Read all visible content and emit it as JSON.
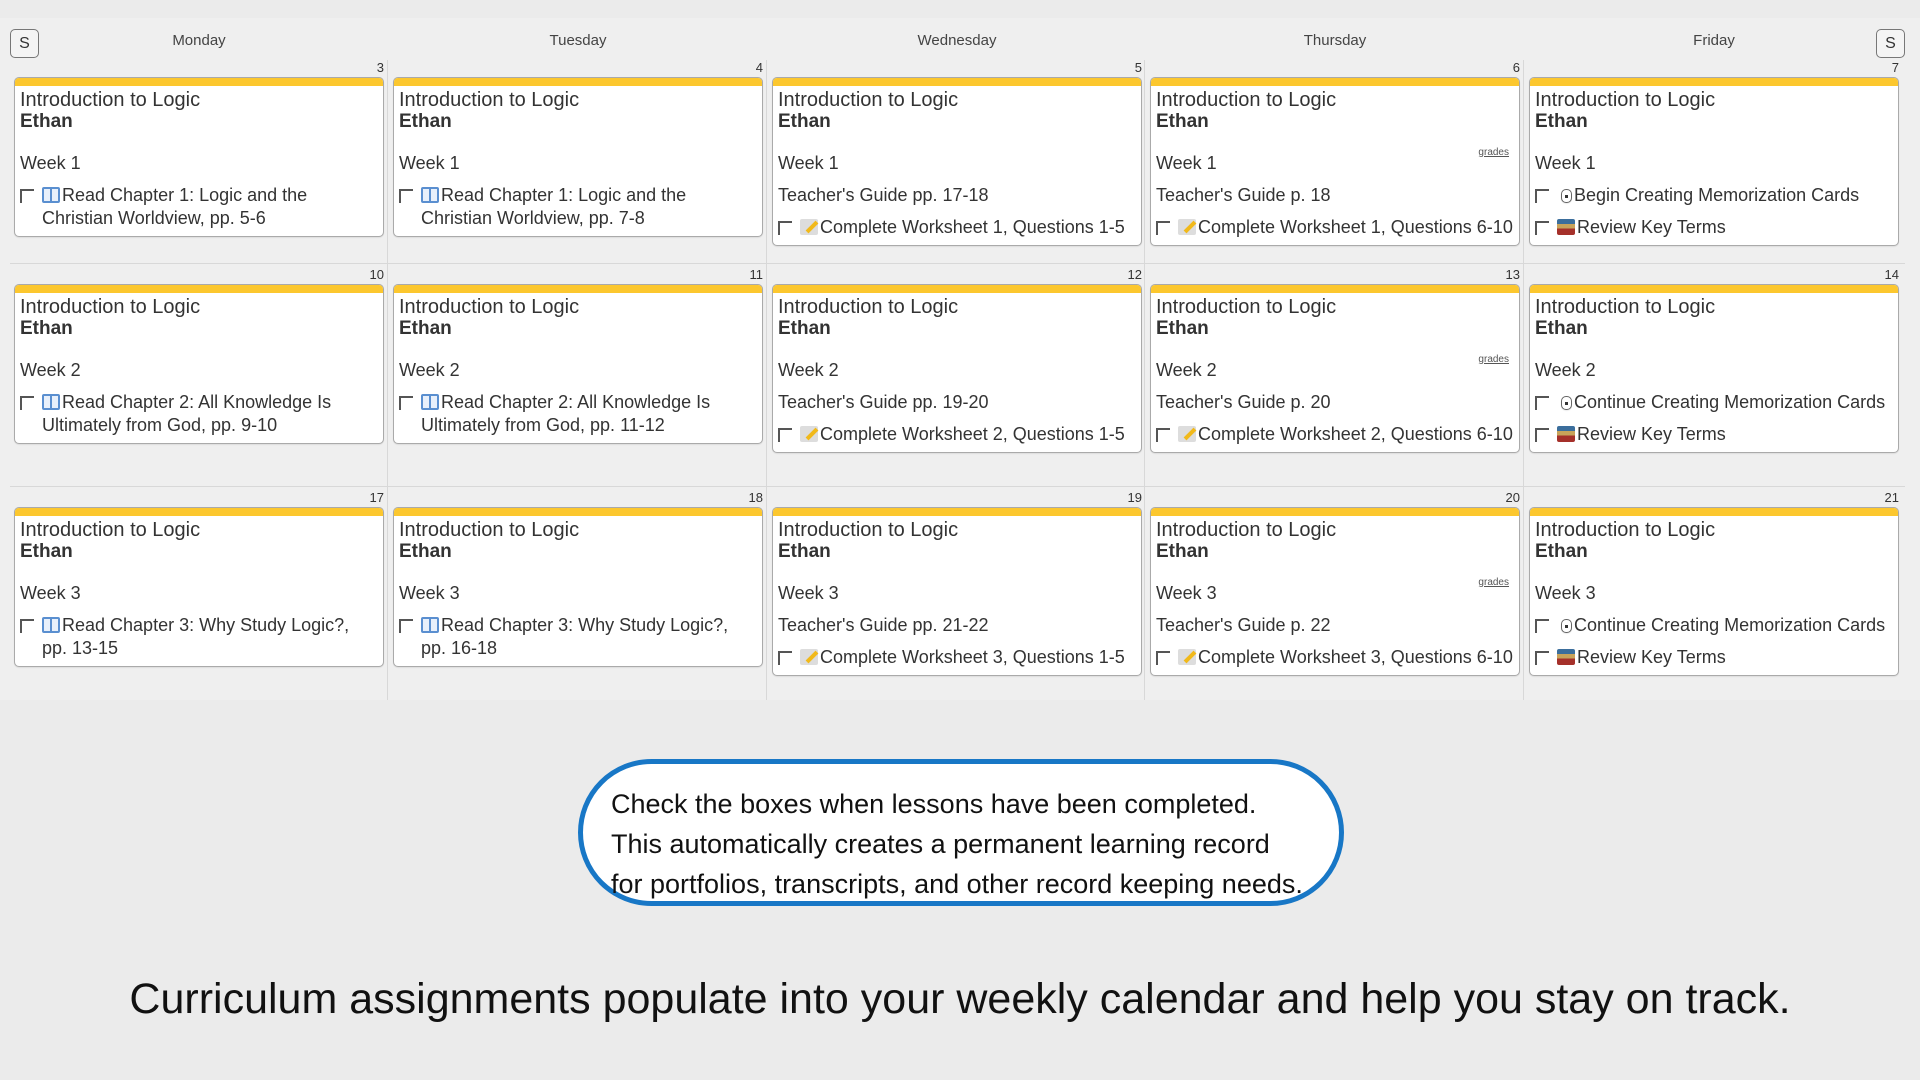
{
  "header": {
    "prev_label": "S",
    "next_label": "S",
    "days": [
      "Monday",
      "Tuesday",
      "Wednesday",
      "Thursday",
      "Friday"
    ]
  },
  "colors": {
    "card_accent": "#fcc72e",
    "bubble_border": "#1877c6"
  },
  "weeks": [
    {
      "days": [
        {
          "date": "3",
          "course": "Introduction to Logic",
          "student": "Ethan",
          "week": "Week 1",
          "tasks": [
            {
              "icon": "book-icon",
              "text": "Read Chapter 1: Logic and the Christian Worldview, pp. 5-6"
            }
          ]
        },
        {
          "date": "4",
          "course": "Introduction to Logic",
          "student": "Ethan",
          "week": "Week 1",
          "tasks": [
            {
              "icon": "book-icon",
              "text": "Read Chapter 1: Logic and the Christian Worldview, pp. 7-8"
            }
          ]
        },
        {
          "date": "5",
          "course": "Introduction to Logic",
          "student": "Ethan",
          "week": "Week 1",
          "guide": "Teacher's Guide pp. 17-18",
          "tasks": [
            {
              "icon": "pencil-icon",
              "text": "Complete Worksheet 1, Questions 1-5"
            }
          ]
        },
        {
          "date": "6",
          "course": "Introduction to Logic",
          "student": "Ethan",
          "grades": "grades",
          "week": "Week 1",
          "guide": "Teacher's Guide p. 18",
          "tasks": [
            {
              "icon": "pencil-icon",
              "text": "Complete Worksheet 1, Questions 6-10"
            }
          ]
        },
        {
          "date": "7",
          "course": "Introduction to Logic",
          "student": "Ethan",
          "week": "Week 1",
          "tasks": [
            {
              "icon": "card-icon",
              "text": "Begin Creating Memorization Cards"
            },
            {
              "icon": "books-icon",
              "text": "Review Key Terms"
            }
          ]
        }
      ]
    },
    {
      "days": [
        {
          "date": "10",
          "course": "Introduction to Logic",
          "student": "Ethan",
          "week": "Week 2",
          "tasks": [
            {
              "icon": "book-icon",
              "text": "Read Chapter 2: All Knowledge Is Ultimately from God, pp. 9-10"
            }
          ]
        },
        {
          "date": "11",
          "course": "Introduction to Logic",
          "student": "Ethan",
          "week": "Week 2",
          "tasks": [
            {
              "icon": "book-icon",
              "text": "Read Chapter 2: All Knowledge Is Ultimately from God, pp. 11-12"
            }
          ]
        },
        {
          "date": "12",
          "course": "Introduction to Logic",
          "student": "Ethan",
          "week": "Week 2",
          "guide": "Teacher's Guide pp. 19-20",
          "tasks": [
            {
              "icon": "pencil-icon",
              "text": "Complete Worksheet 2, Questions 1-5"
            }
          ]
        },
        {
          "date": "13",
          "course": "Introduction to Logic",
          "student": "Ethan",
          "grades": "grades",
          "week": "Week 2",
          "guide": "Teacher's Guide p. 20",
          "tasks": [
            {
              "icon": "pencil-icon",
              "text": "Complete Worksheet 2, Questions 6-10"
            }
          ]
        },
        {
          "date": "14",
          "course": "Introduction to Logic",
          "student": "Ethan",
          "week": "Week 2",
          "tasks": [
            {
              "icon": "card-icon",
              "text": "Continue Creating Memorization Cards"
            },
            {
              "icon": "books-icon",
              "text": "Review Key Terms"
            }
          ]
        }
      ]
    },
    {
      "days": [
        {
          "date": "17",
          "course": "Introduction to Logic",
          "student": "Ethan",
          "week": "Week 3",
          "tasks": [
            {
              "icon": "book-icon",
              "text": "Read Chapter 3: Why Study Logic?, pp. 13-15"
            }
          ]
        },
        {
          "date": "18",
          "course": "Introduction to Logic",
          "student": "Ethan",
          "week": "Week 3",
          "tasks": [
            {
              "icon": "book-icon",
              "text": "Read Chapter 3: Why Study Logic?, pp. 16-18"
            }
          ]
        },
        {
          "date": "19",
          "course": "Introduction to Logic",
          "student": "Ethan",
          "week": "Week 3",
          "guide": "Teacher's Guide pp. 21-22",
          "tasks": [
            {
              "icon": "pencil-icon",
              "text": "Complete Worksheet 3, Questions 1-5"
            }
          ]
        },
        {
          "date": "20",
          "course": "Introduction to Logic",
          "student": "Ethan",
          "grades": "grades",
          "week": "Week 3",
          "guide": "Teacher's Guide p. 22",
          "tasks": [
            {
              "icon": "pencil-icon",
              "text": "Complete Worksheet 3, Questions 6-10"
            }
          ]
        },
        {
          "date": "21",
          "course": "Introduction to Logic",
          "student": "Ethan",
          "week": "Week 3",
          "tasks": [
            {
              "icon": "card-icon",
              "text": "Continue Creating Memorization Cards"
            },
            {
              "icon": "books-icon",
              "text": "Review Key Terms"
            }
          ]
        }
      ]
    }
  ],
  "callout": {
    "lines": [
      "Check the boxes when lessons have been completed.",
      "This automatically creates a permanent learning record",
      "for portfolios, transcripts, and other record keeping needs."
    ]
  },
  "caption": "Curriculum assignments populate into your weekly calendar and help you stay on track."
}
